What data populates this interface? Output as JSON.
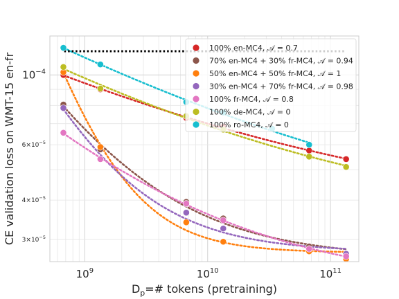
{
  "chart_data": {
    "type": "scatter",
    "title": "",
    "xlabel": "D_p=# tokens (pretraining)",
    "xlabel_parts": {
      "main": "D",
      "sub": "p",
      "rest": "=# tokens (pretraining)"
    },
    "ylabel": "CE validation loss on WMT-15 en-fr",
    "xscale": "log",
    "yscale": "log",
    "xlim": [
      520000000.0,
      170000000000.0
    ],
    "ylim": [
      2.55e-05,
      0.000133
    ],
    "grid": true,
    "legend_position": "top-right",
    "x_ticks": [
      {
        "value": 1000000000.0,
        "base": "10",
        "exp": "9"
      },
      {
        "value": 10000000000.0,
        "base": "10",
        "exp": "10"
      },
      {
        "value": 100000000000.0,
        "base": "10",
        "exp": "11"
      }
    ],
    "y_ticks": [
      {
        "value": 0.0001,
        "base": "10",
        "exp": "−4",
        "size": "major"
      },
      {
        "value": 6e-05,
        "base": "6×10",
        "exp": "−5",
        "size": "minor"
      },
      {
        "value": 4e-05,
        "base": "4×10",
        "exp": "−5",
        "size": "minor"
      },
      {
        "value": 3e-05,
        "base": "3×10",
        "exp": "−5",
        "size": "minor"
      }
    ],
    "reference_line": {
      "y": 0.000119,
      "x_range": [
        680000000.0,
        130000000000.0
      ],
      "color": "#000000",
      "style": "dotted"
    },
    "series": [
      {
        "name": "100% en-MC4, 𝒜 = 0.7",
        "color": "#d62728",
        "x": [
          670000000.0,
          1340000000.0,
          6700000000.0,
          13400000000.0,
          67000000000.0,
          134000000000.0
        ],
        "y": [
          0.0001,
          9e-05,
          7.3e-05,
          6.85e-05,
          5.75e-05,
          5.4e-05
        ]
      },
      {
        "name": "70% en-MC4 + 30% fr-MC4, 𝒜 = 0.94",
        "color": "#8c564b",
        "x": [
          670000000.0,
          1340000000.0,
          6700000000.0,
          13400000000.0,
          67000000000.0,
          134000000000.0
        ],
        "y": [
          8.05e-05,
          5.8e-05,
          3.95e-05,
          3.5e-05,
          2.85e-05,
          2.7e-05
        ]
      },
      {
        "name": "50% en-MC4 + 50% fr-MC4, 𝒜 = 1",
        "color": "#ff7f0e",
        "x": [
          670000000.0,
          1340000000.0,
          6700000000.0,
          13400000000.0,
          67000000000.0,
          134000000000.0
        ],
        "y": [
          0.000102,
          5.9e-05,
          3.4e-05,
          2.95e-05,
          2.75e-05,
          2.6e-05
        ]
      },
      {
        "name": "30% en-MC4 + 70% fr-MC4, 𝒜 = 0.98",
        "color": "#9467bd",
        "x": [
          670000000.0,
          1340000000.0,
          6700000000.0,
          13400000000.0,
          67000000000.0,
          134000000000.0
        ],
        "y": [
          7.85e-05,
          5.4e-05,
          3.65e-05,
          3.25e-05,
          2.8e-05,
          2.7e-05
        ]
      },
      {
        "name": "100% fr-MC4, 𝒜 = 0.8",
        "color": "#e377c2",
        "x": [
          670000000.0,
          1340000000.0,
          6700000000.0,
          13400000000.0,
          67000000000.0,
          134000000000.0
        ],
        "y": [
          6.55e-05,
          5.4e-05,
          3.9e-05,
          3.45e-05,
          2.8e-05,
          2.65e-05
        ]
      },
      {
        "name": "100% de-MC4, 𝒜 = 0",
        "color": "#bcbd22",
        "x": [
          670000000.0,
          1340000000.0,
          6700000000.0,
          13400000000.0,
          67000000000.0,
          134000000000.0
        ],
        "y": [
          0.000106,
          9.05e-05,
          7.4e-05,
          6.7e-05,
          5.5e-05,
          5.1e-05
        ]
      },
      {
        "name": "100% ro-MC4, 𝒜 = 0",
        "color": "#17becf",
        "x": [
          670000000.0,
          1340000000.0,
          6700000000.0,
          13400000000.0,
          33500000000.0,
          67000000000.0
        ],
        "y": [
          0.000122,
          0.000108,
          8.2e-05,
          7.6e-05,
          6.75e-05,
          6e-05
        ]
      }
    ]
  }
}
